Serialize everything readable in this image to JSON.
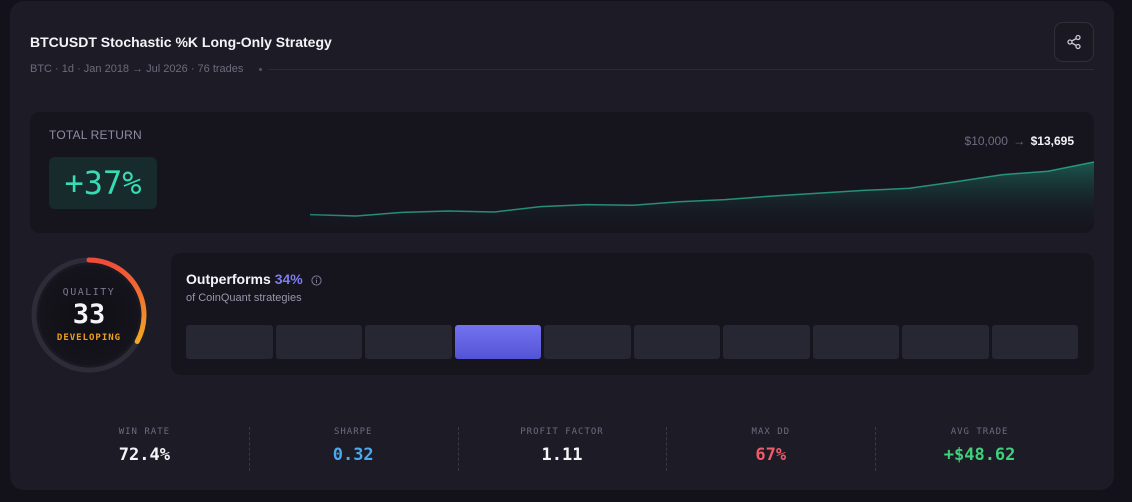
{
  "header": {
    "title": "BTCUSDT Stochastic %K Long-Only Strategy",
    "meta": "BTC · 1d · Jan 2018 → Jul 2026 · 76 trades",
    "share_icon": "share-icon"
  },
  "total_return": {
    "label": "TOTAL RETURN",
    "value": "+37%",
    "start_equity": "$10,000",
    "arrow": "→",
    "end_equity": "$13,695",
    "accent_color": "#37dcb4"
  },
  "quality": {
    "label": "QUALITY",
    "score": "33",
    "status": "DEVELOPING",
    "fraction": 0.33
  },
  "outperforms": {
    "label": "Outperforms",
    "percent": "34%",
    "subtitle": "of CoinQuant strategies",
    "buckets": 10,
    "active_bucket": 3
  },
  "stats": [
    {
      "label": "WIN RATE",
      "value": "72.4%",
      "color": "#f4f4f8"
    },
    {
      "label": "SHARPE",
      "value": "0.32",
      "color": "#4aa8f0"
    },
    {
      "label": "PROFIT FACTOR",
      "value": "1.11",
      "color": "#f4f4f8"
    },
    {
      "label": "MAX DD",
      "value": "67%",
      "color": "#f05a6a"
    },
    {
      "label": "AVG TRADE",
      "value": "+$48.62",
      "color": "#3ed07a"
    }
  ],
  "equity_curve": [
    10000,
    9900,
    10150,
    10250,
    10180,
    10560,
    10700,
    10650,
    10900,
    11050,
    11300,
    11500,
    11700,
    11850,
    12300,
    12800,
    13050,
    13695
  ]
}
